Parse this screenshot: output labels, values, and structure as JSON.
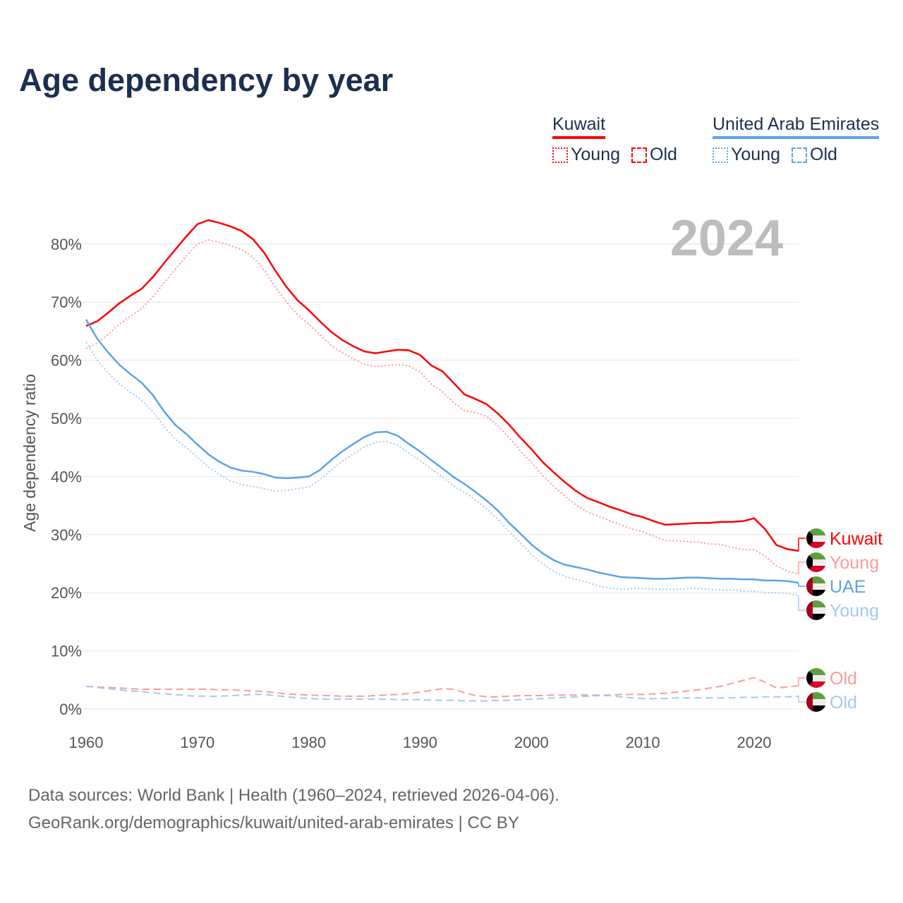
{
  "title": "Age dependency by year",
  "legend": {
    "groups": [
      {
        "name": "Kuwait",
        "color": "#ff0000",
        "items": [
          "Young",
          "Old"
        ]
      },
      {
        "name": "United Arab Emirates",
        "color": "#5ba3ea",
        "items": [
          "Young",
          "Old"
        ]
      }
    ]
  },
  "footer": {
    "line1": "Data sources: World Bank | Health (1960–2024, retrieved 2026-04-06).",
    "line2": "GeoRank.org/demographics/kuwait/united-arab-emirates | CC BY"
  },
  "chart_data": {
    "type": "line",
    "title": "Age dependency by year",
    "year_watermark": "2024",
    "xlabel": "",
    "ylabel": "Age dependency ratio",
    "xlim": [
      1960,
      2024
    ],
    "ylim": [
      0,
      85
    ],
    "x_ticks": [
      "1960",
      "1970",
      "1980",
      "1990",
      "2000",
      "2010",
      "2020"
    ],
    "y_ticks": [
      "0%",
      "10%",
      "20%",
      "30%",
      "40%",
      "50%",
      "60%",
      "70%",
      "80%"
    ],
    "grid": true,
    "x_start": 1960,
    "series": [
      {
        "name": "Kuwait",
        "label": "Kuwait",
        "country": "kuwait",
        "style": "solid",
        "color": "#ff0000",
        "values": [
          65.9,
          66.7,
          68.2,
          69.8,
          71.1,
          72.3,
          74.3,
          76.7,
          79.0,
          81.3,
          83.4,
          84.1,
          83.6,
          83.0,
          82.2,
          80.8,
          78.5,
          75.4,
          72.6,
          70.3,
          68.6,
          66.7,
          64.9,
          63.5,
          62.4,
          61.5,
          61.2,
          61.5,
          61.8,
          61.7,
          60.9,
          59.1,
          58.1,
          56.1,
          54.1,
          53.3,
          52.4,
          50.8,
          48.9,
          46.7,
          44.7,
          42.5,
          40.7,
          39.0,
          37.5,
          36.3,
          35.6,
          34.8,
          34.2,
          33.5,
          33.0,
          32.3,
          31.7,
          31.8,
          31.9,
          32.0,
          32.0,
          32.2,
          32.2,
          32.3,
          32.8,
          30.9,
          28.2,
          27.5,
          27.2
        ]
      },
      {
        "name": "Kuwait Young",
        "label": "Young",
        "country": "kuwait",
        "style": "dotted",
        "color": "#ff9999",
        "values": [
          62.0,
          62.9,
          64.5,
          66.2,
          67.6,
          68.9,
          70.9,
          73.3,
          75.6,
          77.9,
          80.0,
          80.7,
          80.3,
          79.7,
          79.0,
          77.7,
          75.5,
          72.6,
          70.0,
          67.8,
          66.2,
          64.4,
          62.6,
          61.3,
          60.2,
          59.3,
          58.9,
          59.1,
          59.3,
          59.0,
          58.0,
          55.9,
          54.6,
          52.7,
          51.3,
          51.0,
          50.3,
          48.7,
          46.7,
          44.4,
          42.4,
          40.2,
          38.3,
          36.6,
          35.1,
          33.9,
          33.2,
          32.4,
          31.7,
          31.0,
          30.5,
          29.7,
          29.0,
          28.9,
          28.8,
          28.7,
          28.4,
          28.3,
          27.8,
          27.4,
          27.4,
          26.3,
          24.6,
          23.7,
          23.2
        ]
      },
      {
        "name": "UAE",
        "label": "UAE",
        "country": "uae",
        "style": "solid",
        "color": "#5ba3ea",
        "values": [
          67.0,
          63.7,
          61.3,
          59.2,
          57.6,
          56.1,
          54.0,
          51.2,
          48.9,
          47.3,
          45.5,
          43.8,
          42.5,
          41.5,
          41.0,
          40.8,
          40.4,
          39.8,
          39.7,
          39.8,
          40.0,
          41.1,
          42.8,
          44.3,
          45.6,
          46.8,
          47.6,
          47.7,
          47.0,
          45.6,
          44.3,
          42.8,
          41.4,
          39.9,
          38.7,
          37.3,
          35.8,
          34.1,
          32.0,
          30.2,
          28.3,
          26.8,
          25.6,
          24.8,
          24.4,
          24.0,
          23.5,
          23.1,
          22.7,
          22.6,
          22.5,
          22.4,
          22.4,
          22.5,
          22.6,
          22.6,
          22.5,
          22.4,
          22.4,
          22.3,
          22.3,
          22.1,
          22.1,
          22.0,
          21.7
        ]
      },
      {
        "name": "UAE Young",
        "label": "Young",
        "country": "uae",
        "style": "dotted",
        "color": "#a3c9f1",
        "values": [
          63.1,
          60.0,
          57.8,
          55.9,
          54.5,
          53.1,
          51.2,
          48.6,
          46.4,
          45.0,
          43.3,
          41.6,
          40.3,
          39.2,
          38.6,
          38.3,
          37.9,
          37.5,
          37.6,
          37.9,
          38.2,
          39.4,
          41.1,
          42.6,
          43.9,
          45.1,
          45.9,
          46.0,
          45.4,
          44.0,
          42.7,
          41.3,
          39.9,
          38.4,
          37.3,
          35.9,
          34.4,
          32.6,
          30.5,
          28.6,
          26.6,
          25.0,
          23.7,
          22.8,
          22.3,
          21.8,
          21.2,
          20.8,
          20.6,
          20.7,
          20.7,
          20.6,
          20.6,
          20.6,
          20.7,
          20.7,
          20.6,
          20.5,
          20.5,
          20.3,
          20.3,
          20.0,
          20.0,
          19.9,
          19.5
        ]
      },
      {
        "name": "Kuwait Old",
        "label": "Old",
        "country": "kuwait",
        "style": "dashed",
        "color": "#ff9999",
        "values": [
          3.9,
          3.8,
          3.7,
          3.6,
          3.5,
          3.4,
          3.4,
          3.4,
          3.4,
          3.4,
          3.4,
          3.4,
          3.3,
          3.3,
          3.2,
          3.1,
          3.0,
          2.8,
          2.6,
          2.5,
          2.4,
          2.3,
          2.3,
          2.2,
          2.2,
          2.2,
          2.3,
          2.4,
          2.5,
          2.7,
          2.9,
          3.2,
          3.5,
          3.4,
          2.8,
          2.3,
          2.1,
          2.1,
          2.2,
          2.3,
          2.3,
          2.3,
          2.4,
          2.4,
          2.4,
          2.4,
          2.4,
          2.4,
          2.5,
          2.5,
          2.5,
          2.6,
          2.7,
          2.9,
          3.1,
          3.3,
          3.6,
          3.9,
          4.4,
          4.9,
          5.4,
          4.6,
          3.6,
          3.8,
          4.0
        ]
      },
      {
        "name": "UAE Old",
        "label": "Old",
        "country": "uae",
        "style": "dashed",
        "color": "#a3c9f1",
        "values": [
          3.9,
          3.7,
          3.5,
          3.3,
          3.1,
          3.0,
          2.8,
          2.6,
          2.5,
          2.3,
          2.2,
          2.2,
          2.2,
          2.3,
          2.4,
          2.5,
          2.5,
          2.3,
          2.1,
          1.9,
          1.8,
          1.7,
          1.7,
          1.7,
          1.7,
          1.7,
          1.7,
          1.7,
          1.6,
          1.6,
          1.6,
          1.5,
          1.5,
          1.5,
          1.4,
          1.4,
          1.4,
          1.5,
          1.5,
          1.6,
          1.7,
          1.8,
          1.9,
          2.0,
          2.1,
          2.2,
          2.3,
          2.3,
          2.1,
          1.9,
          1.8,
          1.8,
          1.8,
          1.9,
          1.9,
          1.9,
          1.9,
          1.9,
          1.9,
          2.0,
          2.0,
          2.1,
          2.1,
          2.1,
          2.2
        ]
      }
    ]
  }
}
